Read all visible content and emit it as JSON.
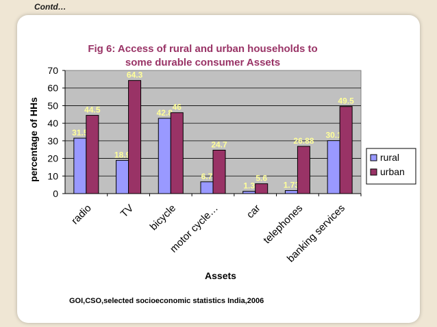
{
  "header_note": "Contd…",
  "source_note": "GOI,CSO,selected socioeconomic statistics India,2006",
  "colors": {
    "plot_bg": "#c0c0c0",
    "rural": "#9999ff",
    "urban": "#993366",
    "title": "#993366",
    "rural_label": "#ffff99",
    "urban_label": "#ffff99",
    "page_bg": "#efe6d4"
  },
  "chart_data": {
    "type": "bar",
    "title_lines": [
      "Fig 6: Access  of rural and urban households to",
      "some durable consumer Assets"
    ],
    "xlabel": "Assets",
    "ylabel": "percentage of HHs",
    "ylim": [
      0,
      70
    ],
    "yticks": [
      0,
      10,
      20,
      30,
      40,
      50,
      60,
      70
    ],
    "categories": [
      "radio",
      "TV",
      "bicycle",
      "motor cycle…",
      "car",
      "telephones",
      "banking services"
    ],
    "series": [
      {
        "name": "rural",
        "values": [
          31.5,
          18.9,
          42.8,
          6.7,
          1.3,
          1.73,
          30.1
        ],
        "labels": [
          "31.5",
          "18.9",
          "42.8",
          "6.7",
          "1.3",
          "1.73",
          "30.1"
        ]
      },
      {
        "name": "urban",
        "values": [
          44.5,
          64.3,
          46,
          24.7,
          5.6,
          26.88,
          49.5
        ],
        "labels": [
          "44.5",
          "64.3",
          "46",
          "24.7",
          "5.6",
          "26.88",
          "49.5"
        ]
      }
    ],
    "legend_position": "right",
    "grid": true
  }
}
